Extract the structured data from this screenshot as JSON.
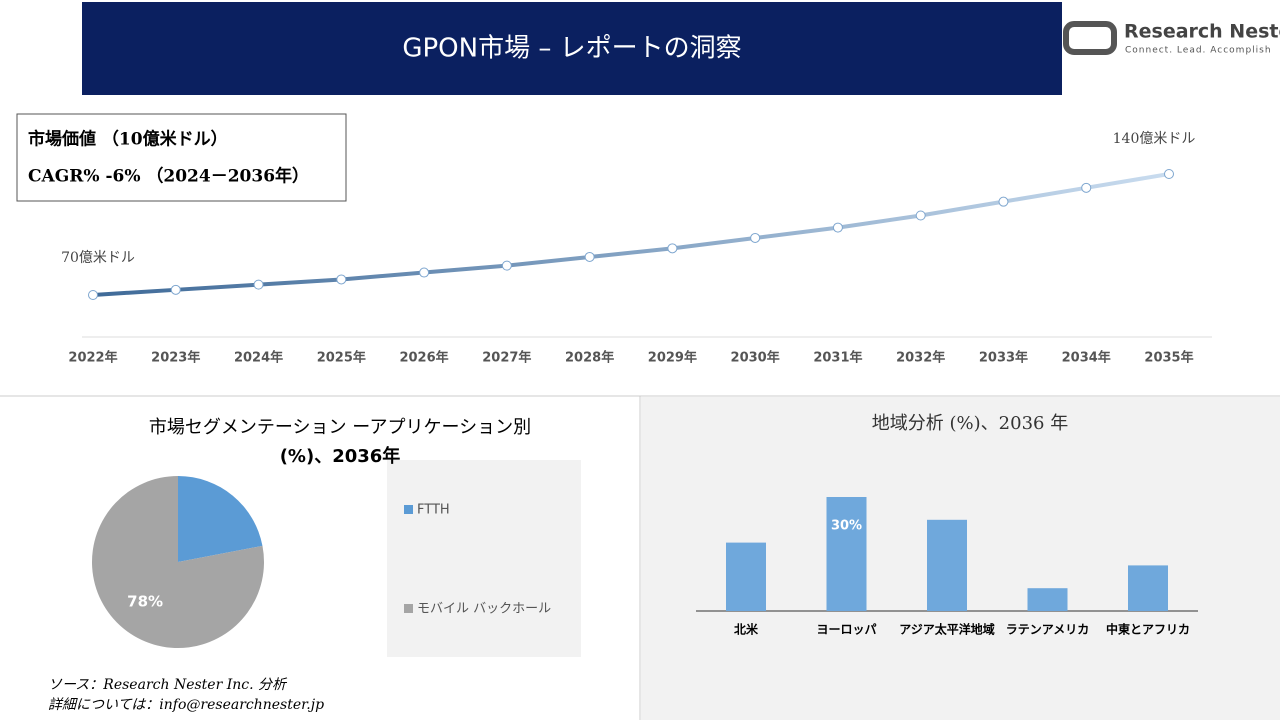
{
  "header": {
    "title": "GPON市場 – レポートの洞察",
    "logo_name": "Research Nester",
    "logo_tagline": "Connect. Lead. Accomplish"
  },
  "info_box": {
    "line1": "市場価値 （10億米ドル）",
    "line2": "CAGR% -6% （2024－2036年）"
  },
  "chart_data": [
    {
      "type": "line",
      "categories": [
        "2022年",
        "2023年",
        "2024年",
        "2025年",
        "2026年",
        "2027年",
        "2028年",
        "2029年",
        "2030年",
        "2031年",
        "2032年",
        "2033年",
        "2034年",
        "2035年"
      ],
      "values": [
        70,
        73,
        76,
        79,
        83,
        87,
        92,
        97,
        103,
        109,
        116,
        124,
        132,
        140
      ],
      "value_labels": [
        "70億米ドル",
        null,
        null,
        null,
        null,
        null,
        null,
        null,
        null,
        null,
        null,
        null,
        null,
        "140億米ドル"
      ],
      "color_start": "#3f6a98",
      "color_end": "#c9dcef"
    },
    {
      "type": "pie",
      "title_lines": [
        "市場セグメンテーション ーアプリケーション別",
        "(%)、2036年"
      ],
      "categories": [
        "FTTH",
        "モバイル バックホール"
      ],
      "values": [
        22,
        78
      ],
      "value_labels": [
        null,
        "78%"
      ],
      "colors": [
        "#5b9bd5",
        "#a5a5a5"
      ]
    },
    {
      "type": "bar",
      "title": "地域分析 (%)、2036 年",
      "categories": [
        "北米",
        "ヨーロッパ",
        "アジア太平洋地域",
        "ラテンアメリカ",
        "中東とアフリカ"
      ],
      "values": [
        18,
        30,
        24,
        6,
        12
      ],
      "value_labels": [
        null,
        "30%",
        null,
        null,
        null
      ],
      "color": "#6fa8dc"
    }
  ],
  "footer": {
    "source": "ソース：Research Nester Inc. 分析",
    "contact": "詳細については：info@researchnester.jp"
  }
}
